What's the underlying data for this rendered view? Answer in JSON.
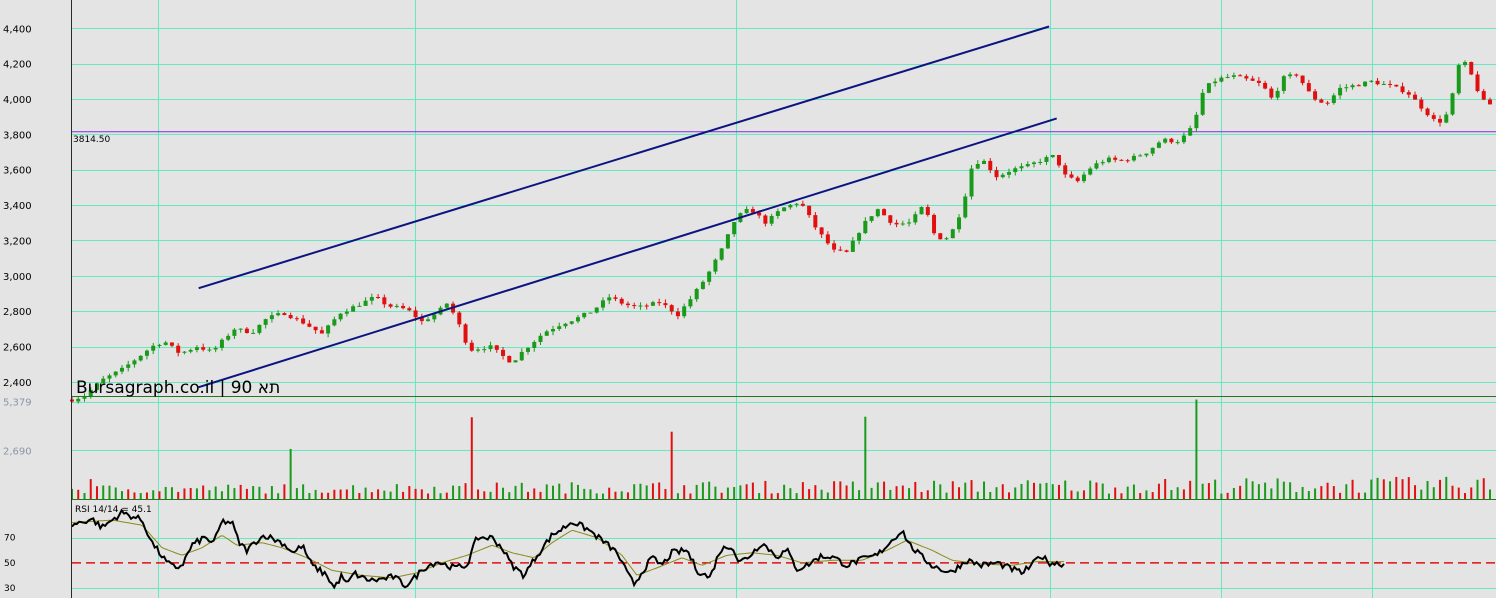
{
  "chart_data": {
    "type": "candlestick",
    "title": "",
    "watermark": "Bursagraph.co.il | תא 90",
    "colors": {
      "background": "#e4e4e4",
      "grid": "#66e8c0",
      "up": "#1a9a1a",
      "down": "#e01010",
      "channel": "#0c1480",
      "level_line": "#7a30e6",
      "rsi": "#000000",
      "rsi_ma": "#8a8a18",
      "rsi_ref": "#e01010"
    },
    "price_axis": {
      "ticks": [
        "4,400",
        "4,200",
        "4,000",
        "3,800",
        "3,600",
        "3,400",
        "3,200",
        "3,000",
        "2,800",
        "2,600",
        "2,400"
      ],
      "values": [
        4400,
        4200,
        4000,
        3800,
        3600,
        3400,
        3200,
        3000,
        2800,
        2600,
        2400
      ],
      "ylim": [
        2320,
        4560
      ]
    },
    "horizontal_level": {
      "value": 3814.5,
      "label": "3814.50"
    },
    "channel": {
      "upper": {
        "from": [
          0.1267,
          2930
        ],
        "to": [
          0.9771,
          4410
        ]
      },
      "lower": {
        "from": [
          0.1267,
          2370
        ],
        "to": [
          0.9847,
          3890
        ]
      }
    },
    "price_path": [
      [
        0.0,
        2300
      ],
      [
        0.012,
        2320
      ],
      [
        0.03,
        2410
      ],
      [
        0.05,
        2470
      ],
      [
        0.08,
        2600
      ],
      [
        0.092,
        2630
      ],
      [
        0.108,
        2560
      ],
      [
        0.125,
        2600
      ],
      [
        0.14,
        2570
      ],
      [
        0.162,
        2700
      ],
      [
        0.18,
        2680
      ],
      [
        0.195,
        2760
      ],
      [
        0.212,
        2790
      ],
      [
        0.233,
        2730
      ],
      [
        0.25,
        2670
      ],
      [
        0.268,
        2790
      ],
      [
        0.288,
        2840
      ],
      [
        0.303,
        2880
      ],
      [
        0.316,
        2830
      ],
      [
        0.335,
        2810
      ],
      [
        0.35,
        2740
      ],
      [
        0.365,
        2790
      ],
      [
        0.376,
        2850
      ],
      [
        0.389,
        2700
      ],
      [
        0.397,
        2580
      ],
      [
        0.418,
        2600
      ],
      [
        0.432,
        2540
      ],
      [
        0.44,
        2510
      ],
      [
        0.452,
        2580
      ],
      [
        0.472,
        2680
      ],
      [
        0.49,
        2730
      ],
      [
        0.505,
        2760
      ],
      [
        0.52,
        2800
      ],
      [
        0.537,
        2880
      ],
      [
        0.552,
        2840
      ],
      [
        0.566,
        2820
      ],
      [
        0.588,
        2850
      ],
      [
        0.606,
        2780
      ],
      [
        0.62,
        2880
      ],
      [
        0.635,
        3000
      ],
      [
        0.65,
        3150
      ],
      [
        0.664,
        3330
      ],
      [
        0.678,
        3380
      ],
      [
        0.694,
        3300
      ],
      [
        0.71,
        3380
      ],
      [
        0.728,
        3420
      ],
      [
        0.745,
        3260
      ],
      [
        0.762,
        3140
      ],
      [
        0.775,
        3130
      ],
      [
        0.79,
        3280
      ],
      [
        0.805,
        3380
      ],
      [
        0.822,
        3290
      ],
      [
        0.838,
        3300
      ],
      [
        0.852,
        3400
      ],
      [
        0.862,
        3240
      ],
      [
        0.872,
        3200
      ],
      [
        0.88,
        3250
      ],
      [
        0.89,
        3380
      ],
      [
        0.9,
        3620
      ],
      [
        0.91,
        3660
      ],
      [
        0.925,
        3560
      ],
      [
        0.94,
        3600
      ],
      [
        0.955,
        3620
      ],
      [
        0.972,
        3660
      ],
      [
        0.983,
        3680
      ],
      [
        0.992,
        3570
      ],
      [
        1.005,
        3530
      ],
      [
        1.02,
        3620
      ],
      [
        1.035,
        3660
      ],
      [
        1.048,
        3650
      ],
      [
        1.062,
        3670
      ],
      [
        1.075,
        3700
      ],
      [
        1.09,
        3770
      ],
      [
        1.105,
        3760
      ],
      [
        1.115,
        3800
      ],
      [
        1.122,
        3860
      ],
      [
        1.132,
        4060
      ],
      [
        1.145,
        4110
      ],
      [
        1.16,
        4130
      ],
      [
        1.175,
        4110
      ],
      [
        1.19,
        4080
      ],
      [
        1.2,
        4000
      ],
      [
        1.212,
        4120
      ],
      [
        1.225,
        4140
      ],
      [
        1.24,
        4010
      ],
      [
        1.254,
        3970
      ],
      [
        1.268,
        4060
      ],
      [
        1.285,
        4080
      ],
      [
        1.3,
        4100
      ],
      [
        1.32,
        4070
      ],
      [
        1.335,
        4040
      ],
      [
        1.35,
        3950
      ],
      [
        1.362,
        3880
      ],
      [
        1.372,
        3870
      ],
      [
        1.38,
        4010
      ],
      [
        1.388,
        4220
      ],
      [
        1.395,
        4190
      ],
      [
        1.402,
        4100
      ],
      [
        1.41,
        3990
      ],
      [
        1.418,
        3970
      ]
    ],
    "price_noise": 22,
    "candle_count": 228,
    "volume_axis": {
      "ticks": [
        "5,379",
        "2,690"
      ],
      "values": [
        5379,
        2690
      ],
      "ylim": [
        0,
        5640
      ]
    },
    "volume_base": [
      300,
      1100
    ],
    "volume_spikes": [
      {
        "x": 0.018,
        "value": 1100
      },
      {
        "x": 0.221,
        "value": 2770
      },
      {
        "x": 0.397,
        "value": 4520
      },
      {
        "x": 0.597,
        "value": 3720
      },
      {
        "x": 0.794,
        "value": 4550
      },
      {
        "x": 1.125,
        "value": 5500
      }
    ],
    "rsi": {
      "label": "RSI 14/14 = 45.1",
      "ticks": [
        "70",
        "50",
        "30"
      ],
      "values": [
        70,
        50,
        30
      ],
      "reference": 50,
      "ylim": [
        22,
        100
      ],
      "path": [
        [
          0.0,
          80
        ],
        [
          0.02,
          85
        ],
        [
          0.03,
          78
        ],
        [
          0.05,
          90
        ],
        [
          0.07,
          84
        ],
        [
          0.08,
          66
        ],
        [
          0.095,
          50
        ],
        [
          0.103,
          46
        ],
        [
          0.11,
          48
        ],
        [
          0.12,
          64
        ],
        [
          0.132,
          70
        ],
        [
          0.142,
          66
        ],
        [
          0.15,
          83
        ],
        [
          0.16,
          82
        ],
        [
          0.167,
          66
        ],
        [
          0.175,
          60
        ],
        [
          0.185,
          68
        ],
        [
          0.193,
          72
        ],
        [
          0.21,
          66
        ],
        [
          0.222,
          58
        ],
        [
          0.23,
          64
        ],
        [
          0.24,
          48
        ],
        [
          0.255,
          40
        ],
        [
          0.262,
          30
        ],
        [
          0.27,
          40
        ],
        [
          0.275,
          32
        ],
        [
          0.282,
          42
        ],
        [
          0.29,
          38
        ],
        [
          0.3,
          36
        ],
        [
          0.31,
          37
        ],
        [
          0.322,
          39
        ],
        [
          0.333,
          32
        ],
        [
          0.34,
          36
        ],
        [
          0.352,
          46
        ],
        [
          0.365,
          51
        ],
        [
          0.382,
          46
        ],
        [
          0.395,
          48
        ],
        [
          0.405,
          70
        ],
        [
          0.42,
          70
        ],
        [
          0.43,
          62
        ],
        [
          0.44,
          48
        ],
        [
          0.452,
          40
        ],
        [
          0.465,
          56
        ],
        [
          0.48,
          72
        ],
        [
          0.492,
          78
        ],
        [
          0.5,
          83
        ],
        [
          0.515,
          77
        ],
        [
          0.53,
          68
        ],
        [
          0.545,
          58
        ],
        [
          0.555,
          42
        ],
        [
          0.562,
          33
        ],
        [
          0.572,
          45
        ],
        [
          0.58,
          54
        ],
        [
          0.59,
          48
        ],
        [
          0.6,
          58
        ],
        [
          0.615,
          60
        ],
        [
          0.625,
          44
        ],
        [
          0.638,
          38
        ],
        [
          0.648,
          60
        ],
        [
          0.66,
          64
        ],
        [
          0.667,
          50
        ],
        [
          0.678,
          56
        ],
        [
          0.69,
          66
        ],
        [
          0.705,
          55
        ],
        [
          0.715,
          60
        ],
        [
          0.725,
          45
        ],
        [
          0.735,
          48
        ],
        [
          0.748,
          55
        ],
        [
          0.76,
          55
        ],
        [
          0.775,
          48
        ],
        [
          0.787,
          52
        ],
        [
          0.805,
          56
        ],
        [
          0.82,
          68
        ],
        [
          0.83,
          76
        ],
        [
          0.838,
          64
        ],
        [
          0.848,
          56
        ],
        [
          0.86,
          48
        ],
        [
          0.878,
          42
        ],
        [
          0.895,
          52
        ],
        [
          0.91,
          48
        ],
        [
          0.925,
          50
        ],
        [
          0.937,
          46
        ],
        [
          0.95,
          42
        ],
        [
          0.96,
          48
        ],
        [
          0.968,
          56
        ],
        [
          0.978,
          50
        ],
        [
          0.992,
          49
        ]
      ],
      "ma_path": [
        [
          0.0,
          82
        ],
        [
          0.04,
          84
        ],
        [
          0.07,
          80
        ],
        [
          0.09,
          62
        ],
        [
          0.11,
          56
        ],
        [
          0.13,
          62
        ],
        [
          0.15,
          72
        ],
        [
          0.165,
          64
        ],
        [
          0.19,
          66
        ],
        [
          0.21,
          62
        ],
        [
          0.235,
          54
        ],
        [
          0.26,
          44
        ],
        [
          0.29,
          40
        ],
        [
          0.32,
          38
        ],
        [
          0.345,
          42
        ],
        [
          0.37,
          50
        ],
        [
          0.395,
          56
        ],
        [
          0.42,
          64
        ],
        [
          0.44,
          58
        ],
        [
          0.462,
          54
        ],
        [
          0.48,
          66
        ],
        [
          0.5,
          76
        ],
        [
          0.525,
          70
        ],
        [
          0.55,
          56
        ],
        [
          0.565,
          40
        ],
        [
          0.585,
          46
        ],
        [
          0.61,
          54
        ],
        [
          0.63,
          48
        ],
        [
          0.655,
          56
        ],
        [
          0.68,
          58
        ],
        [
          0.705,
          56
        ],
        [
          0.73,
          50
        ],
        [
          0.76,
          52
        ],
        [
          0.79,
          52
        ],
        [
          0.815,
          60
        ],
        [
          0.835,
          68
        ],
        [
          0.86,
          60
        ],
        [
          0.88,
          52
        ],
        [
          0.91,
          49
        ],
        [
          0.94,
          48
        ],
        [
          0.965,
          51
        ],
        [
          0.992,
          51
        ]
      ]
    }
  }
}
